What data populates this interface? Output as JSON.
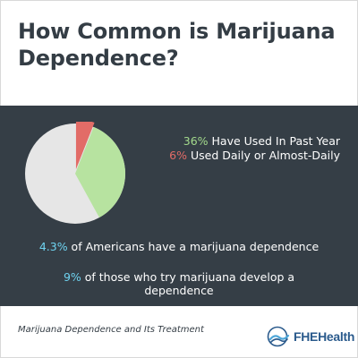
{
  "header": {
    "title": "How Common is Marijuana Dependence?"
  },
  "chart_data": {
    "type": "pie",
    "slices": [
      {
        "label": "Have Used In Past Year",
        "percent": 36,
        "color": "#b7e3a0"
      },
      {
        "label": "Used Daily or Almost-Daily",
        "percent": 6,
        "color": "#e26c67"
      },
      {
        "label": "",
        "percent": 58,
        "color": "#e6e6e6"
      }
    ],
    "legend": [
      {
        "value": "36%",
        "text": " Have Used In Past Year",
        "color": "#a3da8c"
      },
      {
        "value": "6%",
        "text": " Used Daily or Almost-Daily",
        "color": "#e26c67"
      }
    ],
    "legend_position": "right"
  },
  "stats": [
    {
      "value": "4.3%",
      "text": " of Americans have a marijuana dependence"
    },
    {
      "value": "9%",
      "text": " of those who try marijuana develop a dependence"
    }
  ],
  "footer": {
    "caption": "Marijuana Dependence and Its Treatment",
    "logo_text": "FHEHealth"
  },
  "colors": {
    "panel": "#353e46",
    "accent_blue": "#6fd3f0",
    "title": "#343d45"
  }
}
